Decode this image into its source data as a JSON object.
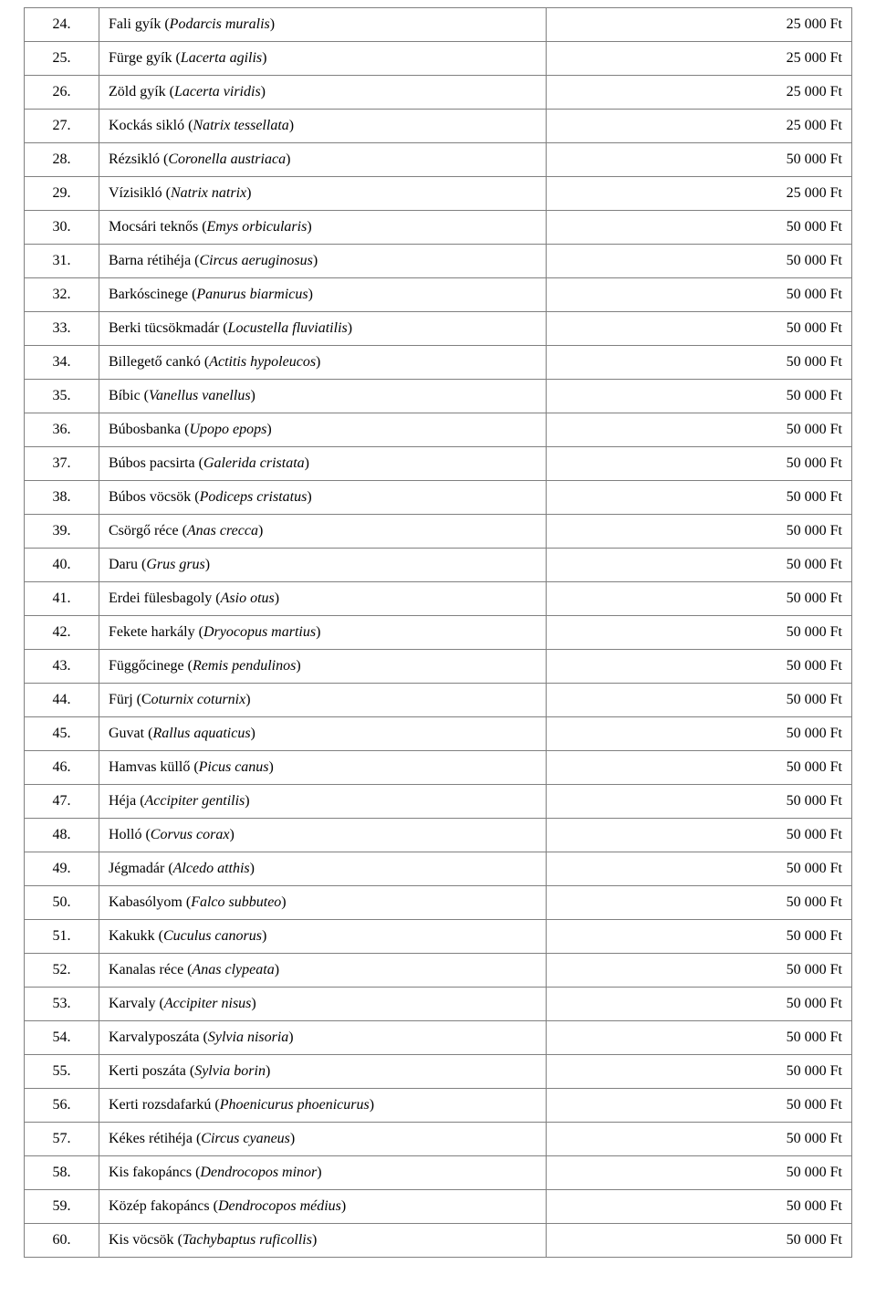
{
  "table": {
    "columns": {
      "num_width": 82,
      "name_width": 490,
      "price_align": "right"
    },
    "border_color": "#808080",
    "background_color": "#ffffff",
    "text_color": "#000000",
    "font_family": "Times New Roman",
    "font_size": 16,
    "rows": [
      {
        "num": "24.",
        "common": "Fali gyík ",
        "latin_open": "(",
        "latin": "Podarcis muralis",
        "latin_close": ")",
        "price": "25 000 Ft"
      },
      {
        "num": "25.",
        "common": "Fürge gyík ",
        "latin_open": "(",
        "latin": "Lacerta agilis",
        "latin_close": ")",
        "price": "25 000 Ft"
      },
      {
        "num": "26.",
        "common": "Zöld gyík ",
        "latin_open": "(",
        "latin": "Lacerta viridis",
        "latin_close": ")",
        "price": "25 000 Ft"
      },
      {
        "num": "27.",
        "common": "Kockás sikló ",
        "latin_open": "(",
        "latin": "Natrix tessellata",
        "latin_close": ")",
        "price": "25 000 Ft"
      },
      {
        "num": "28.",
        "common": "Rézsikló ",
        "latin_open": "(",
        "latin": "Coronella austriaca",
        "latin_close": ")",
        "price": "50 000 Ft"
      },
      {
        "num": "29.",
        "common": "Vízisikló ",
        "latin_open": "(",
        "latin": "Natrix natrix",
        "latin_close": ")",
        "price": "25 000 Ft"
      },
      {
        "num": "30.",
        "common": "Mocsári teknős ",
        "latin_open": "(",
        "latin": "Emys orbicularis",
        "latin_close": ")",
        "price": "50 000 Ft"
      },
      {
        "num": "31.",
        "common": "Barna rétihéja ",
        "latin_open": "(",
        "latin": "Circus aeruginosus",
        "latin_close": ")",
        "price": "50 000 Ft"
      },
      {
        "num": "32.",
        "common": "Barkóscinege ",
        "latin_open": "(",
        "latin": "Panurus biarmicus",
        "latin_close": ")",
        "price": "50 000 Ft"
      },
      {
        "num": "33.",
        "common": "Berki tücsökmadár ",
        "latin_open": "(",
        "latin": "Locustella fluviatilis",
        "latin_close": ")",
        "price": "50 000 Ft"
      },
      {
        "num": "34.",
        "common": "Billegető cankó ",
        "latin_open": "(",
        "latin": "Actitis hypoleucos",
        "latin_close": ")",
        "price": "50 000 Ft"
      },
      {
        "num": "35.",
        "common": "Bíbic ",
        "latin_open": "(",
        "latin": "Vanellus vanellus",
        "latin_close": ")",
        "price": "50 000 Ft"
      },
      {
        "num": "36.",
        "common": "Búbosbanka ",
        "latin_open": "(",
        "latin": "Upopo epops",
        "latin_close": ")",
        "price": "50 000 Ft"
      },
      {
        "num": "37.",
        "common": "Búbos pacsirta ",
        "latin_open": "(",
        "latin": "Galerida cristata",
        "latin_close": ")",
        "price": "50 000 Ft"
      },
      {
        "num": "38.",
        "common": "Búbos vöcsök ",
        "latin_open": "(",
        "latin": "Podiceps cristatus",
        "latin_close": ")",
        "price": "50 000 Ft"
      },
      {
        "num": "39.",
        "common": "Csörgő réce ",
        "latin_open": "(",
        "latin": "Anas crecca",
        "latin_close": ")",
        "price": "50 000 Ft"
      },
      {
        "num": "40.",
        "common": "Daru ",
        "latin_open": "(",
        "latin": "Grus grus",
        "latin_close": ")",
        "price": "50 000 Ft"
      },
      {
        "num": "41.",
        "common": "Erdei fülesbagoly ",
        "latin_open": "(",
        "latin": "Asio otus",
        "latin_close": ")",
        "price": "50 000 Ft"
      },
      {
        "num": "42.",
        "common": "Fekete harkály ",
        "latin_open": "(",
        "latin": "Dryocopus martius",
        "latin_close": ")",
        "price": "50 000 Ft"
      },
      {
        "num": "43.",
        "common": "Függőcinege ",
        "latin_open": "(",
        "latin": "Remis pendulinos",
        "latin_close": ")",
        "price": "50 000 Ft"
      },
      {
        "num": "44.",
        "common": "Fürj (C",
        "latin_open": "",
        "latin": "oturnix coturnix",
        "latin_close": ")",
        "price": "50 000 Ft"
      },
      {
        "num": "45.",
        "common": "Guvat ",
        "latin_open": "(",
        "latin": "Rallus aquaticus",
        "latin_close": ")",
        "price": "50 000 Ft"
      },
      {
        "num": "46.",
        "common": "Hamvas küllő ",
        "latin_open": "(",
        "latin": "Picus canus",
        "latin_close": ")",
        "price": "50 000 Ft"
      },
      {
        "num": "47.",
        "common": "Héja ",
        "latin_open": "(",
        "latin": "Accipiter gentilis",
        "latin_close": ")",
        "price": "50 000 Ft"
      },
      {
        "num": "48.",
        "common": "Holló ",
        "latin_open": "(",
        "latin": "Corvus corax",
        "latin_close": ")",
        "price": "50 000 Ft"
      },
      {
        "num": "49.",
        "common": "Jégmadár ",
        "latin_open": "(",
        "latin": "Alcedo atthis",
        "latin_close": ")",
        "price": "50 000 Ft"
      },
      {
        "num": "50.",
        "common": "Kabasólyom ",
        "latin_open": "(",
        "latin": "Falco subbuteo",
        "latin_close": ")",
        "price": "50 000 Ft"
      },
      {
        "num": "51.",
        "common": "Kakukk ",
        "latin_open": "(",
        "latin": "Cuculus canorus",
        "latin_close": ")",
        "price": "50 000 Ft"
      },
      {
        "num": "52.",
        "common": "Kanalas réce ",
        "latin_open": "(",
        "latin": "Anas clypeata",
        "latin_close": ")",
        "price": "50 000 Ft"
      },
      {
        "num": "53.",
        "common": "Karvaly ",
        "latin_open": "(",
        "latin": "Accipiter nisus",
        "latin_close": ")",
        "price": "50 000 Ft"
      },
      {
        "num": "54.",
        "common": "Karvalyposzáta ",
        "latin_open": "(",
        "latin": "Sylvia nisoria",
        "latin_close": ")",
        "price": "50 000 Ft"
      },
      {
        "num": "55.",
        "common": "Kerti poszáta ",
        "latin_open": "(",
        "latin": "Sylvia borin",
        "latin_close": ")",
        "price": "50 000 Ft"
      },
      {
        "num": "56.",
        "common": "Kerti rozsdafarkú ",
        "latin_open": "(",
        "latin": "Phoenicurus phoenicurus",
        "latin_close": ")",
        "price": "50 000 Ft"
      },
      {
        "num": "57.",
        "common": "Kékes rétihéja ",
        "latin_open": "(",
        "latin": "Circus cyaneus",
        "latin_close": ")",
        "price": "50 000 Ft"
      },
      {
        "num": "58.",
        "common": "Kis fakopáncs ",
        "latin_open": "(",
        "latin": "Dendrocopos minor",
        "latin_close": ")",
        "price": "50 000 Ft"
      },
      {
        "num": "59.",
        "common": "Közép fakopáncs ",
        "latin_open": "(",
        "latin": "Dendrocopos médius",
        "latin_close": ")",
        "price": "50 000 Ft"
      },
      {
        "num": "60.",
        "common": "Kis vöcsök ",
        "latin_open": "(",
        "latin": "Tachybaptus ruficollis",
        "latin_close": ")",
        "price": "50 000 Ft"
      }
    ]
  }
}
